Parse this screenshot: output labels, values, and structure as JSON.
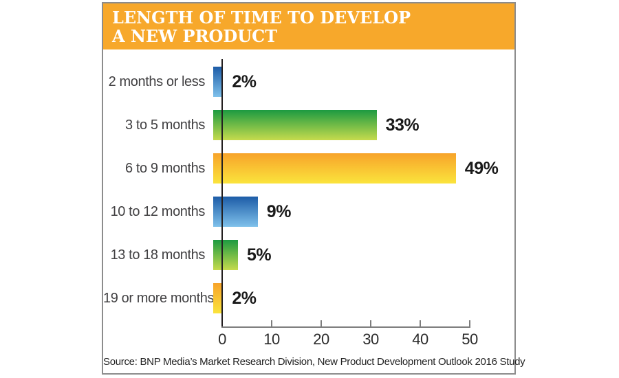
{
  "header": {
    "title_line1": "LENGTH OF TIME TO DEVELOP",
    "title_line2": "A NEW PRODUCT"
  },
  "footer": {
    "source": "Source: BNP Media’s Market Research Division, New Product Development Outlook 2016 Study"
  },
  "colors": {
    "header_bg": "#F7A82B",
    "frame_border": "#8C8C8C",
    "bar_gradients": {
      "blue": [
        "#1D5CA7",
        "#7FC1EB"
      ],
      "green": [
        "#1C9A41",
        "#C6DB4D"
      ],
      "yellow": [
        "#F7A32A",
        "#FBE43C"
      ]
    }
  },
  "chart_data": {
    "type": "bar",
    "orientation": "horizontal",
    "title": "LENGTH OF TIME TO DEVELOP A NEW PRODUCT",
    "categories": [
      "2 months or less",
      "3 to 5 months",
      "6 to 9 months",
      "10 to 12 months",
      "13 to 18 months",
      "19 or more months"
    ],
    "values": [
      2,
      33,
      49,
      9,
      5,
      2
    ],
    "value_labels": [
      "2%",
      "33%",
      "49%",
      "9%",
      "5%",
      "2%"
    ],
    "bar_colors": [
      "blue",
      "green",
      "yellow",
      "blue",
      "green",
      "yellow"
    ],
    "xlim": [
      0,
      50
    ],
    "x_ticks": [
      "0",
      "10",
      "20",
      "30",
      "40",
      "50"
    ],
    "grid": false,
    "legend": false,
    "source": "Source: BNP Media’s Market Research Division, New Product Development Outlook 2016 Study"
  }
}
